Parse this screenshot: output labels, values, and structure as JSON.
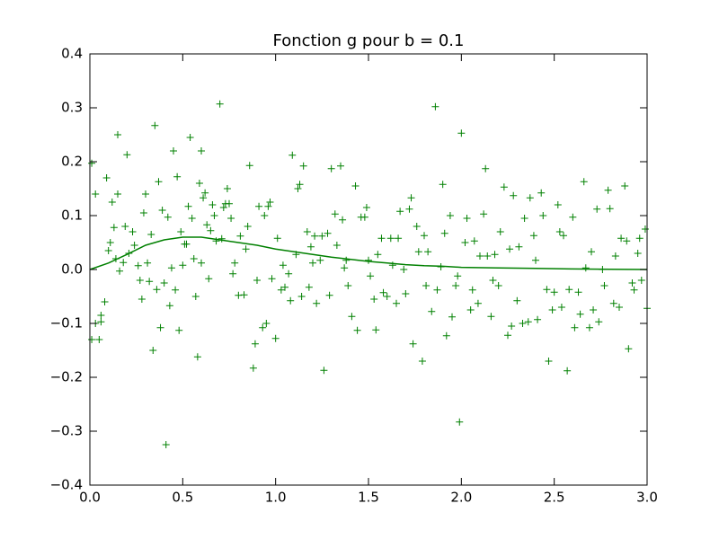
{
  "chart_data": {
    "type": "scatter",
    "title": "Fonction g pour b = 0.1",
    "xlim": [
      0,
      3
    ],
    "ylim": [
      -0.4,
      0.4
    ],
    "xticks": [
      {
        "value": 0,
        "label": "0.0"
      },
      0.5,
      {
        "value": 1,
        "label": "1.0"
      },
      1.5,
      {
        "value": 2,
        "label": "2.0"
      },
      2.5,
      {
        "value": 3,
        "label": "3.0"
      }
    ],
    "yticks": [
      {
        "value": -0.4,
        "label": "−0.4"
      },
      {
        "value": -0.3,
        "label": "−0.3"
      },
      {
        "value": -0.2,
        "label": "−0.2"
      },
      {
        "value": -0.1,
        "label": "−0.1"
      },
      {
        "value": 0,
        "label": "0.0"
      },
      0.1,
      0.2,
      0.3,
      0.4
    ],
    "series": [
      {
        "color": "#008000",
        "marker": "+",
        "x": [
          0.01,
          0.01,
          0.03,
          0.03,
          0.05,
          0.06,
          0.06,
          0.08,
          0.09,
          0.1,
          0.11,
          0.12,
          0.13,
          0.14,
          0.15,
          0.15,
          0.16,
          0.18,
          0.19,
          0.2,
          0.21,
          0.23,
          0.24,
          0.26,
          0.27,
          0.28,
          0.29,
          0.3,
          0.31,
          0.32,
          0.33,
          0.34,
          0.35,
          0.36,
          0.37,
          0.38,
          0.39,
          0.4,
          0.41,
          0.42,
          0.43,
          0.44,
          0.45,
          0.46,
          0.47,
          0.48,
          0.49,
          0.5,
          0.51,
          0.52,
          0.53,
          0.54,
          0.55,
          0.56,
          0.57,
          0.58,
          0.59,
          0.6,
          0.6,
          0.61,
          0.62,
          0.63,
          0.64,
          0.65,
          0.66,
          0.67,
          0.68,
          0.7,
          0.71,
          0.72,
          0.73,
          0.74,
          0.75,
          0.76,
          0.77,
          0.78,
          0.8,
          0.81,
          0.83,
          0.84,
          0.85,
          0.86,
          0.88,
          0.89,
          0.9,
          0.91,
          0.93,
          0.94,
          0.95,
          0.96,
          0.97,
          0.98,
          1.0,
          1.01,
          1.03,
          1.04,
          1.05,
          1.07,
          1.08,
          1.09,
          1.11,
          1.12,
          1.13,
          1.14,
          1.15,
          1.17,
          1.18,
          1.19,
          1.2,
          1.21,
          1.22,
          1.24,
          1.25,
          1.26,
          1.28,
          1.29,
          1.3,
          1.32,
          1.33,
          1.35,
          1.36,
          1.37,
          1.38,
          1.39,
          1.41,
          1.43,
          1.44,
          1.46,
          1.48,
          1.49,
          1.5,
          1.51,
          1.53,
          1.54,
          1.55,
          1.57,
          1.58,
          1.6,
          1.62,
          1.63,
          1.65,
          1.66,
          1.67,
          1.69,
          1.7,
          1.72,
          1.73,
          1.74,
          1.76,
          1.77,
          1.79,
          1.8,
          1.81,
          1.82,
          1.84,
          1.86,
          1.87,
          1.89,
          1.9,
          1.91,
          1.92,
          1.94,
          1.95,
          1.97,
          1.98,
          1.99,
          2.0,
          2.02,
          2.03,
          2.05,
          2.06,
          2.07,
          2.09,
          2.1,
          2.12,
          2.13,
          2.14,
          2.16,
          2.17,
          2.18,
          2.2,
          2.21,
          2.23,
          2.25,
          2.26,
          2.27,
          2.28,
          2.3,
          2.31,
          2.33,
          2.34,
          2.36,
          2.37,
          2.39,
          2.4,
          2.41,
          2.43,
          2.44,
          2.46,
          2.47,
          2.49,
          2.5,
          2.52,
          2.53,
          2.54,
          2.55,
          2.57,
          2.58,
          2.6,
          2.61,
          2.63,
          2.64,
          2.66,
          2.67,
          2.69,
          2.7,
          2.71,
          2.73,
          2.74,
          2.76,
          2.77,
          2.79,
          2.8,
          2.82,
          2.83,
          2.85,
          2.86,
          2.88,
          2.89,
          2.9,
          2.92,
          2.93,
          2.95,
          2.96,
          2.97,
          2.99,
          3.0
        ],
        "values": [
          -0.13,
          0.197,
          0.14,
          -0.1,
          -0.13,
          -0.085,
          -0.097,
          -0.06,
          0.17,
          0.035,
          0.05,
          0.125,
          0.078,
          0.02,
          0.14,
          0.25,
          -0.003,
          0.013,
          0.08,
          0.213,
          0.03,
          0.07,
          0.045,
          0.007,
          -0.02,
          -0.055,
          0.105,
          0.14,
          0.012,
          -0.022,
          0.065,
          -0.15,
          0.267,
          -0.037,
          0.163,
          -0.108,
          0.11,
          -0.025,
          -0.325,
          0.097,
          -0.067,
          0.003,
          0.22,
          -0.038,
          0.172,
          -0.113,
          0.07,
          0.008,
          0.047,
          0.047,
          0.117,
          0.245,
          0.095,
          0.02,
          -0.05,
          -0.162,
          0.16,
          0.012,
          0.22,
          0.133,
          0.142,
          0.083,
          -0.017,
          0.072,
          0.12,
          0.1,
          0.053,
          0.307,
          0.057,
          0.115,
          0.122,
          0.15,
          0.122,
          0.095,
          -0.008,
          0.012,
          -0.048,
          0.062,
          -0.047,
          0.038,
          0.08,
          0.193,
          -0.183,
          -0.138,
          -0.02,
          0.117,
          -0.108,
          0.1,
          -0.1,
          0.117,
          0.125,
          -0.017,
          -0.128,
          0.058,
          -0.038,
          0.008,
          -0.033,
          -0.008,
          -0.058,
          0.212,
          0.028,
          0.15,
          0.158,
          -0.05,
          0.192,
          0.07,
          -0.033,
          0.042,
          0.012,
          0.062,
          -0.063,
          0.017,
          0.062,
          -0.187,
          0.067,
          -0.048,
          0.187,
          0.103,
          0.045,
          0.192,
          0.092,
          0.003,
          0.017,
          -0.03,
          -0.087,
          0.155,
          -0.113,
          0.097,
          0.097,
          0.115,
          0.017,
          -0.012,
          -0.055,
          -0.112,
          0.028,
          0.058,
          -0.043,
          -0.05,
          0.058,
          0.008,
          -0.063,
          0.058,
          0.108,
          0.0,
          -0.045,
          0.112,
          0.133,
          -0.138,
          0.08,
          0.033,
          -0.17,
          0.063,
          -0.03,
          0.033,
          -0.078,
          0.302,
          -0.038,
          0.005,
          0.158,
          0.067,
          -0.123,
          0.1,
          -0.088,
          -0.03,
          -0.012,
          -0.283,
          0.253,
          0.05,
          0.095,
          -0.075,
          -0.038,
          0.053,
          -0.063,
          0.025,
          0.103,
          0.187,
          0.025,
          -0.087,
          -0.02,
          0.028,
          -0.03,
          0.07,
          0.153,
          -0.122,
          0.038,
          -0.105,
          0.137,
          -0.058,
          0.042,
          -0.1,
          0.095,
          -0.097,
          0.133,
          0.063,
          0.017,
          -0.093,
          0.142,
          0.1,
          -0.037,
          -0.17,
          -0.075,
          -0.042,
          0.12,
          0.07,
          -0.07,
          0.063,
          -0.188,
          -0.037,
          0.097,
          -0.108,
          -0.042,
          -0.083,
          0.163,
          0.003,
          -0.108,
          0.033,
          -0.075,
          0.112,
          -0.097,
          0.0,
          -0.03,
          0.147,
          0.113,
          -0.063,
          0.025,
          -0.07,
          0.058,
          0.155,
          0.053,
          -0.147,
          -0.025,
          -0.038,
          0.03,
          0.058,
          -0.02,
          0.075,
          -0.072
        ]
      },
      {
        "color": "#008000",
        "marker": "line",
        "x": [
          0,
          0.1,
          0.2,
          0.3,
          0.4,
          0.5,
          0.6,
          0.7,
          0.8,
          0.9,
          1.0,
          1.1,
          1.2,
          1.3,
          1.4,
          1.5,
          1.6,
          1.7,
          1.8,
          1.9,
          2.0,
          2.2,
          2.4,
          2.6,
          2.8,
          3.0
        ],
        "values": [
          0,
          0.012,
          0.028,
          0.045,
          0.055,
          0.06,
          0.06,
          0.055,
          0.05,
          0.045,
          0.038,
          0.033,
          0.028,
          0.023,
          0.019,
          0.015,
          0.012,
          0.009,
          0.007,
          0.006,
          0.004,
          0.003,
          0.002,
          0.001,
          0.0005,
          0
        ]
      }
    ]
  }
}
